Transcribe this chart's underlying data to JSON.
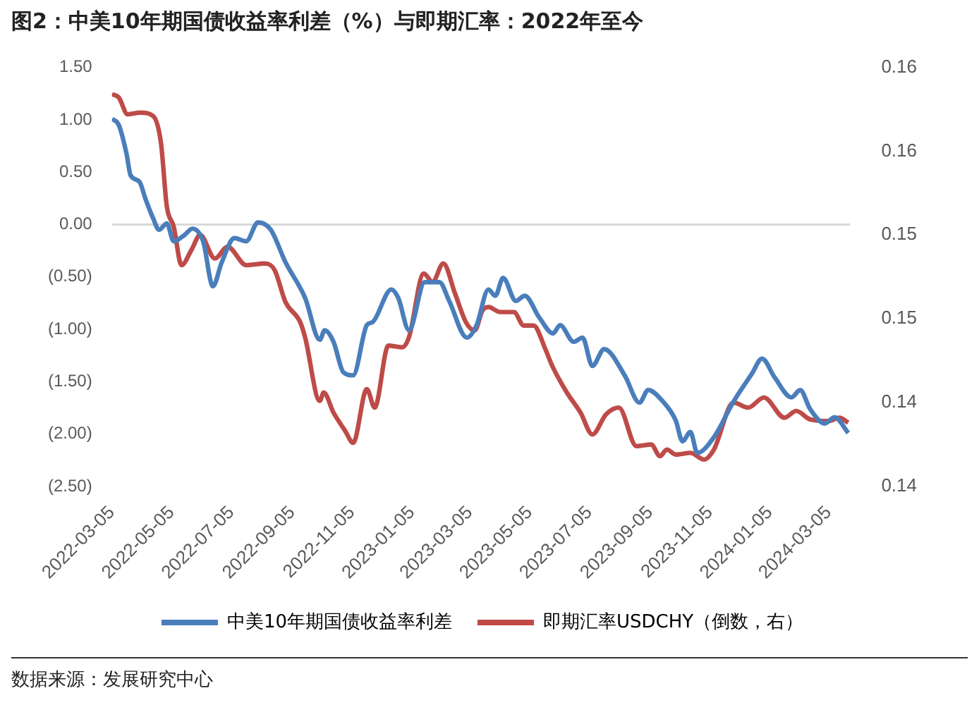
{
  "chart_data": {
    "type": "line",
    "title": "图2：中美10年期国债收益率利差（%）与即期汇率：2022年至今",
    "xlim": [
      "2022-03-05",
      "2024-03-27"
    ],
    "xticks": [
      "2022-03-05",
      "2022-05-05",
      "2022-07-05",
      "2022-09-05",
      "2022-11-05",
      "2023-01-05",
      "2023-03-05",
      "2023-05-05",
      "2023-07-05",
      "2023-09-05",
      "2023-11-05",
      "2024-01-05",
      "2024-03-05"
    ],
    "ylim": [
      -2.5,
      1.5
    ],
    "yticks": [
      {
        "value": 1.5,
        "label": "1.50"
      },
      {
        "value": 1,
        "label": "1.00"
      },
      {
        "value": 0.5,
        "label": "0.50"
      },
      {
        "value": 0,
        "label": "0.00"
      },
      {
        "value": -0.5,
        "label": "(0.50)"
      },
      {
        "value": -1,
        "label": "(1.00)"
      },
      {
        "value": -1.5,
        "label": "(1.50)"
      },
      {
        "value": -2,
        "label": "(2.00)"
      },
      {
        "value": -2.5,
        "label": "(2.50)"
      }
    ],
    "y2lim": [
      0.135,
      0.16
    ],
    "y2ticks": [
      {
        "value": 0.16,
        "label": "0.16"
      },
      {
        "value": 0.155,
        "label": "0.16"
      },
      {
        "value": 0.15,
        "label": "0.15"
      },
      {
        "value": 0.145,
        "label": "0.15"
      },
      {
        "value": 0.14,
        "label": "0.14"
      },
      {
        "value": 0.135,
        "label": "0.14"
      }
    ],
    "ref_lines": [
      {
        "axis": "y",
        "value": 0,
        "color": "#d9d9d9"
      }
    ],
    "legend": "bottom",
    "marker": "none",
    "line_style": "solid",
    "annotations": [
      "数据来源：发展研究中心"
    ],
    "series": [
      {
        "name": "中美10年期国债收益率利差",
        "color": "#4a7ebb",
        "x": [
          "2022-03-05",
          "2022-03-12",
          "2022-03-20",
          "2022-03-24",
          "2022-04-02",
          "2022-04-08",
          "2022-04-16",
          "2022-04-22",
          "2022-04-30",
          "2022-05-07",
          "2022-05-18",
          "2022-05-26",
          "2022-06-06",
          "2022-06-16",
          "2022-06-25",
          "2022-07-08",
          "2022-07-20",
          "2022-08-01",
          "2022-08-14",
          "2022-08-29",
          "2022-09-18",
          "2022-10-03",
          "2022-10-08",
          "2022-10-17",
          "2022-10-27",
          "2022-11-06",
          "2022-11-20",
          "2022-11-26",
          "2022-12-15",
          "2022-12-22",
          "2023-01-02",
          "2023-01-18",
          "2023-02-02",
          "2023-02-12",
          "2023-03-02",
          "2023-03-12",
          "2023-03-24",
          "2023-03-31",
          "2023-04-08",
          "2023-04-21",
          "2023-04-30",
          "2023-05-15",
          "2023-05-29",
          "2023-06-05",
          "2023-06-19",
          "2023-06-28",
          "2023-07-08",
          "2023-07-20",
          "2023-08-10",
          "2023-08-25",
          "2023-09-03",
          "2023-09-18",
          "2023-10-01",
          "2023-10-08",
          "2023-10-16",
          "2023-10-23",
          "2023-11-09",
          "2023-11-29",
          "2023-12-18",
          "2023-12-28",
          "2024-01-10",
          "2024-01-27",
          "2024-02-05",
          "2024-02-15",
          "2024-03-01",
          "2024-03-11",
          "2024-03-25"
        ],
        "values": [
          1.01,
          0.95,
          0.67,
          0.47,
          0.41,
          0.25,
          0.06,
          -0.05,
          0.01,
          -0.16,
          -0.1,
          -0.04,
          -0.16,
          -0.59,
          -0.36,
          -0.13,
          -0.16,
          0.02,
          -0.05,
          -0.36,
          -0.7,
          -1.1,
          -1.01,
          -1.12,
          -1.41,
          -1.44,
          -0.96,
          -0.93,
          -0.62,
          -0.7,
          -1.01,
          -0.55,
          -0.55,
          -0.73,
          -1.08,
          -0.96,
          -0.62,
          -0.68,
          -0.51,
          -0.73,
          -0.68,
          -0.89,
          -1.04,
          -0.96,
          -1.12,
          -1.08,
          -1.35,
          -1.19,
          -1.44,
          -1.7,
          -1.58,
          -1.69,
          -1.87,
          -2.07,
          -1.98,
          -2.18,
          -2.03,
          -1.69,
          -1.42,
          -1.28,
          -1.46,
          -1.65,
          -1.58,
          -1.76,
          -1.9,
          -1.84,
          -1.99
        ]
      },
      {
        "name": "即期汇率USDCHY（倒数，右）",
        "color": "#be4b48",
        "axis": "y2",
        "x": [
          "2022-03-05",
          "2022-03-12",
          "2022-03-21",
          "2022-04-03",
          "2022-04-16",
          "2022-04-24",
          "2022-04-30",
          "2022-05-07",
          "2022-05-15",
          "2022-05-25",
          "2022-06-03",
          "2022-06-18",
          "2022-07-01",
          "2022-07-20",
          "2022-08-08",
          "2022-08-18",
          "2022-08-29",
          "2022-09-13",
          "2022-09-18",
          "2022-10-03",
          "2022-10-07",
          "2022-10-17",
          "2022-10-29",
          "2022-11-06",
          "2022-11-20",
          "2022-11-28",
          "2022-12-12",
          "2022-12-26",
          "2023-01-02",
          "2023-01-17",
          "2023-01-26",
          "2023-02-06",
          "2023-02-18",
          "2023-03-01",
          "2023-03-10",
          "2023-03-18",
          "2023-03-24",
          "2023-04-05",
          "2023-04-19",
          "2023-04-29",
          "2023-05-09",
          "2023-05-21",
          "2023-05-28",
          "2023-06-12",
          "2023-06-26",
          "2023-07-08",
          "2023-07-22",
          "2023-08-04",
          "2023-08-22",
          "2023-09-06",
          "2023-09-15",
          "2023-09-22",
          "2023-10-01",
          "2023-10-16",
          "2023-10-30",
          "2023-11-09",
          "2023-11-29",
          "2023-12-14",
          "2023-12-30",
          "2024-01-20",
          "2024-02-01",
          "2024-02-15",
          "2024-03-05",
          "2024-03-16",
          "2024-03-25"
        ],
        "values": [
          0.1584,
          0.1582,
          0.1572,
          0.1573,
          0.1571,
          0.1555,
          0.1517,
          0.1505,
          0.1482,
          0.1491,
          0.15,
          0.1486,
          0.1493,
          0.1482,
          0.1483,
          0.1479,
          0.146,
          0.1448,
          0.1439,
          0.1401,
          0.1406,
          0.1394,
          0.1383,
          0.1376,
          0.1408,
          0.1397,
          0.1434,
          0.1433,
          0.1439,
          0.1477,
          0.1472,
          0.1483,
          0.1465,
          0.1448,
          0.1443,
          0.1455,
          0.1457,
          0.1454,
          0.1454,
          0.1446,
          0.1446,
          0.1432,
          0.1422,
          0.1406,
          0.1394,
          0.1381,
          0.1393,
          0.1397,
          0.1374,
          0.1375,
          0.1368,
          0.1372,
          0.1369,
          0.137,
          0.1366,
          0.1372,
          0.14,
          0.1397,
          0.1403,
          0.1391,
          0.1395,
          0.139,
          0.1389,
          0.1391,
          0.1388
        ]
      }
    ]
  }
}
